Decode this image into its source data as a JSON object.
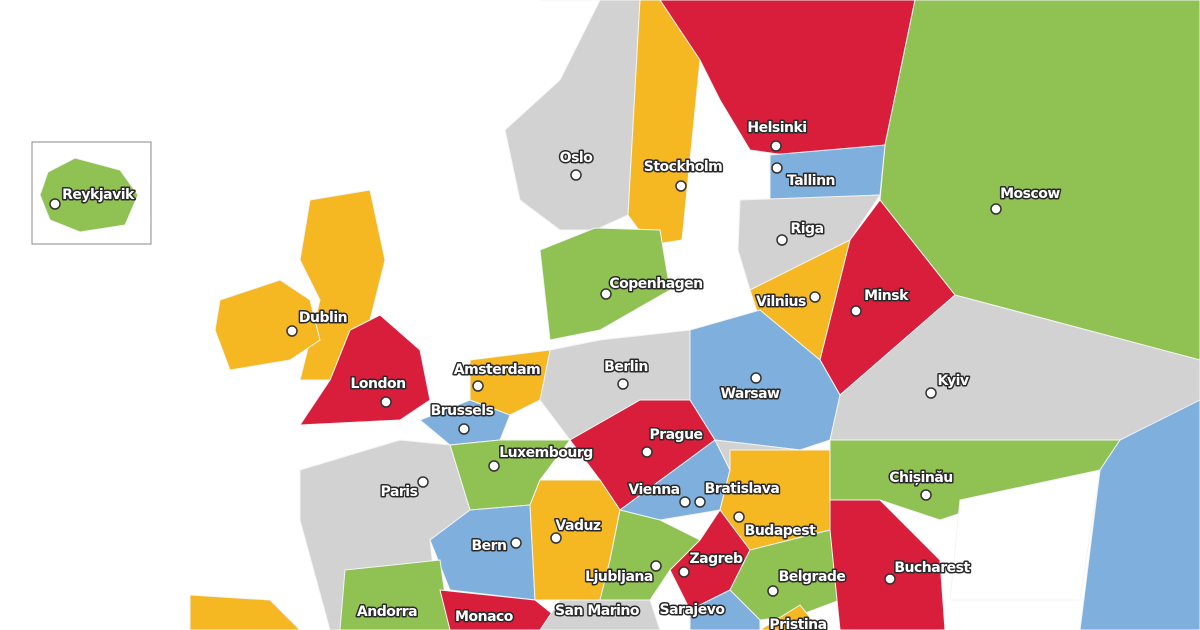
{
  "cities": [
    "Reykjavik",
    "Oslo",
    "Stockholm",
    "Helsinki",
    "Tallinn",
    "Moscow",
    "Riga",
    "Copenhagen",
    "Vilnius",
    "Minsk",
    "Dublin",
    "Amsterdam",
    "Berlin",
    "London",
    "Warsaw",
    "Kyiv",
    "Brussels",
    "Prague",
    "Luxembourg",
    "Paris",
    "Vienna",
    "Bratislava",
    "Chișinău",
    "Vaduz",
    "Budapest",
    "Bern",
    "Zagreb",
    "Ljubljana",
    "Belgrade",
    "Bucharest",
    "Andorra",
    "Monaco",
    "San Marino",
    "Sarajevo",
    "Pristina"
  ]
}
